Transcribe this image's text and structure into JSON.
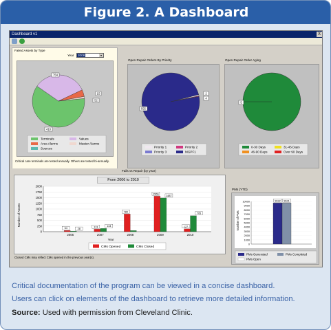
{
  "figure": {
    "title": "Figure 2. A Dashboard",
    "caption_line1": "Critical documentation of the program can be viewed in a concise dashboard.",
    "caption_line2": "Users can click on elements of the dashboard to retrieve more detailed information.",
    "source_label": "Source:",
    "source_text": "Used with permission from Cleveland Clinic."
  },
  "window": {
    "title": "Dashboard v1",
    "close": "X"
  },
  "colors": {
    "green": "#1f8a3a",
    "navy": "#2a2a8a",
    "pink": "#d05070",
    "red": "#e03030",
    "lightgreen": "#6cc46c",
    "lavender": "#d8b8e8",
    "salmon": "#e86848",
    "teal": "#5cb8b0"
  },
  "failed_assets": {
    "title": "Failed Assets by Type",
    "year_label": "Year",
    "year_value": "2008",
    "callouts": [
      "754",
      "15",
      "52",
      "410"
    ],
    "legend": [
      "Terminals",
      "Values",
      "Area Alarms",
      "Master Alarms",
      "Sources"
    ],
    "note": "Critical care terminals are tested annually. Others are tested bi-annually."
  },
  "repair_priority": {
    "title": "Open Repair Orders By Priority",
    "callouts": [
      "2",
      "4",
      "555"
    ],
    "legend": [
      "Priority 1",
      "Priority 2",
      "Priority 3",
      "MGPF1"
    ]
  },
  "repair_aging": {
    "title": "Open Repair Order Aging",
    "callouts": [
      "5"
    ],
    "legend": [
      "0-30 Days",
      "31-45 Days",
      "46-90 Days",
      "Over 90 Days"
    ]
  },
  "fails_vs_repair": {
    "title": "Fails vs Repair (by year)",
    "range": "From 2006 to 2010",
    "ylabel": "Number of Assets",
    "xlabel": "Year",
    "legend": [
      "CMs Opened",
      "CMs Closed"
    ],
    "note": "Closed CMs may reflect CMs opened in the previous year(s)."
  },
  "pms": {
    "title": "PMs (YTD)",
    "ylabel": "Number of PMs",
    "legend": [
      "PMs Generated",
      "PMs Completed",
      "PMs Open"
    ]
  },
  "chart_data": [
    {
      "type": "pie",
      "labels": [
        "Terminals",
        "Values",
        "Area Alarms",
        "Master Alarms",
        "Sources"
      ],
      "values": [
        754,
        410,
        52,
        15,
        0
      ]
    },
    {
      "type": "pie",
      "labels": [
        "Priority 1",
        "Priority 2",
        "Priority 3",
        "MGPF1"
      ],
      "values": [
        4,
        2,
        0,
        555
      ]
    },
    {
      "type": "pie",
      "labels": [
        "0-30 Days",
        "31-45 Days",
        "46-90 Days",
        "Over 90 Days"
      ],
      "values": [
        5,
        0,
        0,
        0
      ]
    },
    {
      "type": "bar",
      "categories": [
        "2006",
        "2007",
        "2008",
        "2009",
        "2010"
      ],
      "series": [
        {
          "name": "CMs Opened",
          "values": [
            54,
            113,
            780,
            1566,
            127
          ]
        },
        {
          "name": "CMs Closed",
          "values": [
            28,
            144,
            50,
            1487,
            705
          ]
        }
      ],
      "ylim": [
        0,
        2000
      ],
      "yticks": [
        0,
        250,
        500,
        750,
        1000,
        1250,
        1500,
        1750,
        2000
      ],
      "bar_labels": [
        [
          "54",
          "113",
          "780",
          "1566",
          "127"
        ],
        [
          "28",
          "144",
          "",
          "1487",
          "705"
        ]
      ]
    },
    {
      "type": "bar",
      "categories": [
        ""
      ],
      "series": [
        {
          "name": "PMs Generated",
          "values": [
            9632
          ]
        },
        {
          "name": "PMs Completed",
          "values": [
            9621
          ]
        }
      ],
      "ylim": [
        0,
        10000
      ],
      "yticks": [
        0,
        1000,
        2000,
        3000,
        4000,
        5000,
        6000,
        7000,
        8000,
        9000,
        10000
      ],
      "bar_labels": [
        [
          "9632"
        ],
        [
          "9621"
        ]
      ]
    }
  ]
}
